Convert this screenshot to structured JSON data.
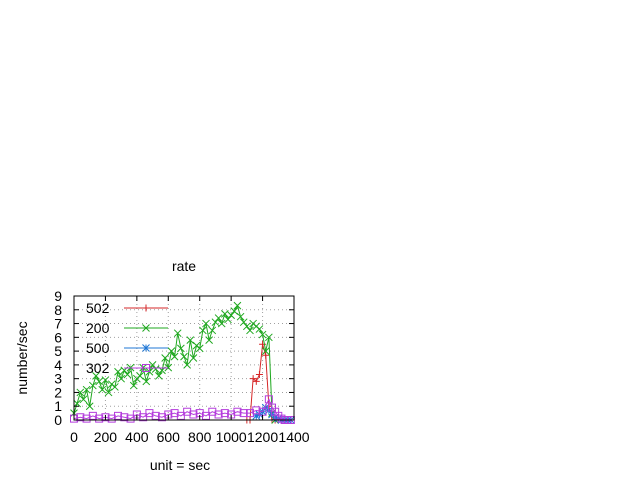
{
  "chart_data": {
    "type": "line",
    "title": "rate",
    "xlabel": "unit = sec",
    "ylabel": "number/sec",
    "xlim": [
      0,
      1400
    ],
    "ylim": [
      0,
      9
    ],
    "xticks": [
      "0",
      "200",
      "400",
      "600",
      "800",
      "1000",
      "1200",
      "1400"
    ],
    "yticks": [
      "0",
      "1",
      "2",
      "3",
      "4",
      "5",
      "6",
      "7",
      "8",
      "9"
    ],
    "grid": true,
    "legend_position": "top-left",
    "series": [
      {
        "name": "502",
        "color": "#d62728",
        "marker": "plus",
        "x": [
          1100,
          1120,
          1140,
          1160,
          1180,
          1200,
          1220,
          1240,
          1260,
          1280
        ],
        "y": [
          0,
          0,
          3,
          2.8,
          3.3,
          5.5,
          4.7,
          1.0,
          0,
          0
        ]
      },
      {
        "name": "200",
        "color": "#1fa81f",
        "marker": "cross",
        "x": [
          0,
          20,
          40,
          60,
          80,
          100,
          120,
          140,
          160,
          180,
          200,
          220,
          240,
          260,
          280,
          300,
          320,
          340,
          360,
          380,
          400,
          420,
          440,
          460,
          480,
          500,
          520,
          540,
          560,
          580,
          600,
          620,
          640,
          660,
          680,
          700,
          720,
          740,
          760,
          780,
          800,
          820,
          840,
          860,
          880,
          900,
          920,
          940,
          960,
          980,
          1000,
          1020,
          1040,
          1060,
          1080,
          1100,
          1120,
          1140,
          1160,
          1180,
          1200,
          1220,
          1240,
          1260,
          1280
        ],
        "y": [
          0.5,
          1.2,
          2.0,
          1.5,
          2.2,
          1.0,
          2.5,
          3.2,
          2.8,
          2.2,
          2.9,
          2.0,
          2.6,
          2.4,
          3.5,
          3.0,
          3.6,
          3.3,
          3.8,
          2.5,
          3.0,
          3.2,
          3.8,
          2.8,
          3.5,
          4.0,
          3.7,
          3.2,
          3.6,
          4.5,
          3.8,
          5.0,
          4.6,
          6.3,
          5.2,
          4.6,
          4.0,
          5.8,
          4.5,
          5.4,
          5.2,
          6.5,
          7.0,
          5.8,
          6.5,
          7.1,
          7.4,
          7.0,
          7.7,
          7.3,
          7.6,
          7.9,
          8.3,
          7.5,
          7.1,
          6.8,
          6.5,
          7.0,
          6.8,
          6.6,
          6.2,
          5.0,
          6.0,
          0.5,
          0
        ]
      },
      {
        "name": "500",
        "color": "#1f77d6",
        "marker": "star",
        "x": [
          1160,
          1180,
          1200,
          1220,
          1240,
          1260,
          1280,
          1300,
          1320,
          1340,
          1360,
          1380
        ],
        "y": [
          0.3,
          0.4,
          0.6,
          0.9,
          0.7,
          0.4,
          0.2,
          0.1,
          0,
          0,
          0,
          0
        ]
      },
      {
        "name": "302",
        "color": "#b43cdc",
        "marker": "box",
        "x": [
          0,
          40,
          80,
          120,
          160,
          200,
          240,
          280,
          320,
          360,
          400,
          440,
          480,
          520,
          560,
          600,
          640,
          680,
          720,
          760,
          800,
          840,
          880,
          920,
          960,
          1000,
          1040,
          1080,
          1120,
          1160,
          1200,
          1240,
          1260,
          1280,
          1300,
          1320,
          1340,
          1360,
          1380
        ],
        "y": [
          0.1,
          0.2,
          0.1,
          0.3,
          0.1,
          0.2,
          0.1,
          0.3,
          0.2,
          0.1,
          0.4,
          0.2,
          0.5,
          0.3,
          0.2,
          0.4,
          0.5,
          0.3,
          0.6,
          0.4,
          0.5,
          0.3,
          0.6,
          0.4,
          0.5,
          0.4,
          0.6,
          0.5,
          0.5,
          0.7,
          0.6,
          1.5,
          0.9,
          0.6,
          0.3,
          0.1,
          0,
          0,
          0
        ]
      }
    ]
  }
}
